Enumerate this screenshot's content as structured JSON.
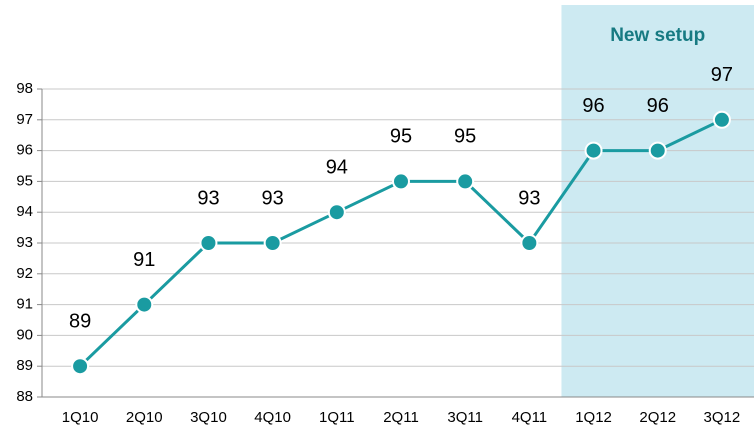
{
  "chart_data": {
    "type": "line",
    "categories": [
      "1Q10",
      "2Q10",
      "3Q10",
      "4Q10",
      "1Q11",
      "2Q11",
      "3Q11",
      "4Q11",
      "1Q12",
      "2Q12",
      "3Q12"
    ],
    "values": [
      89,
      91,
      93,
      93,
      94,
      95,
      95,
      93,
      96,
      96,
      97
    ],
    "color": "#1a9ba1",
    "ylim": [
      88,
      98
    ],
    "yticks": [
      88,
      89,
      90,
      91,
      92,
      93,
      94,
      95,
      96,
      97,
      98
    ],
    "grid": true,
    "highlight": {
      "label": "New setup",
      "from": "1Q12",
      "to": "3Q12",
      "color": "#cdeaf2"
    }
  }
}
